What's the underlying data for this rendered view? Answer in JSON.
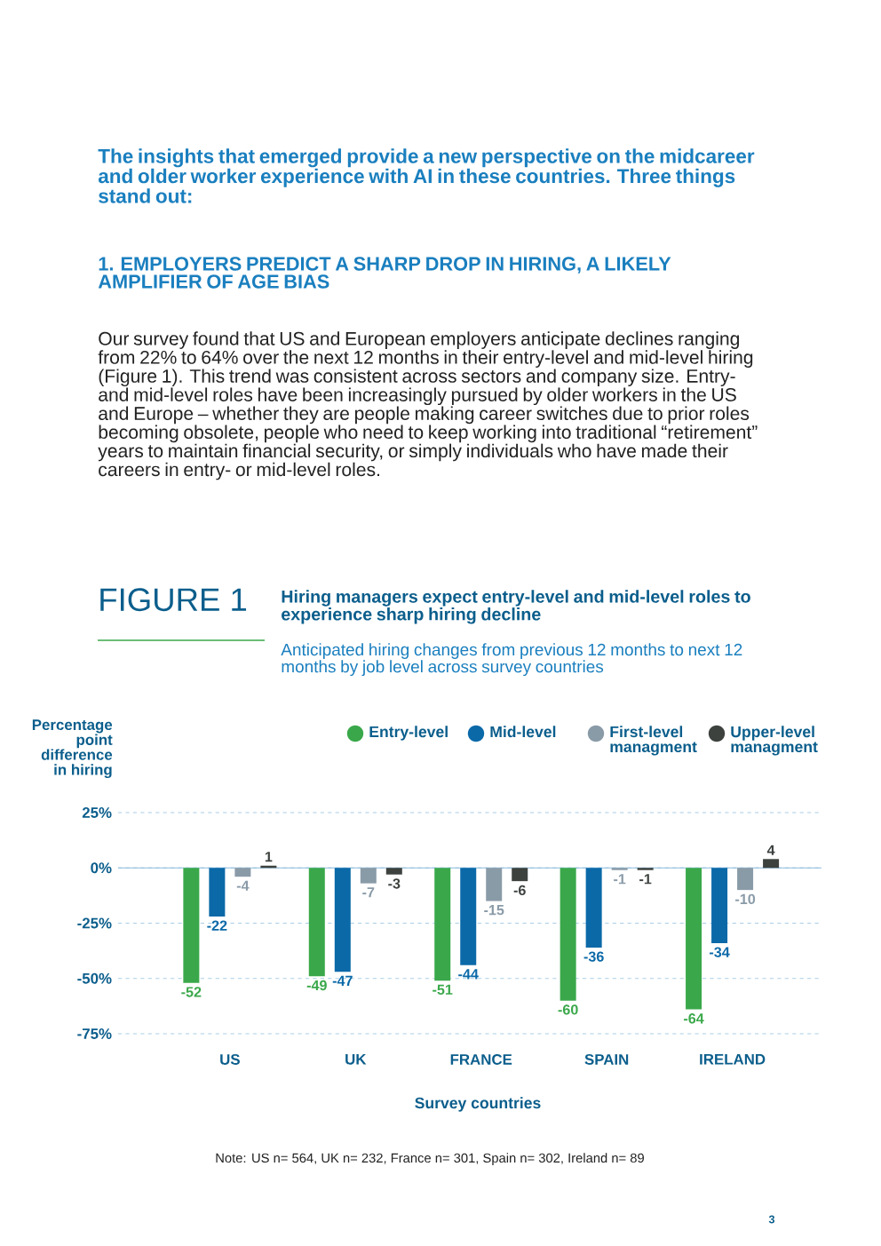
{
  "chart_data": {
    "type": "bar",
    "title": "Hiring managers expect entry-level and mid-level roles to experience sharp hiring decline",
    "subtitle": "Anticipated hiring changes from previous 12 months to next 12 months by job level across survey countries",
    "xlabel": "Survey countries",
    "ylabel": "Percentage point difference in hiring",
    "annotations": [
      "The insights that emerged provide a new perspective on the midcareer and older worker experience with AI in these countries. Three things stand out:",
      "1. EMPLOYERS PREDICT A SHARP DROP IN HIRING, A LIKELY AMPLIFIER OF AGE BIAS",
      "Our survey found that US and European employers anticipate declines ranging from 22% to 64% over the next 12 months in their entry-level and mid-level hiring (Figure 1). This trend was consistent across sectors and company size. Entry- and mid-level roles have been increasingly pursued by older workers in the US and Europe – whether they are people making career switches due to prior roles becoming obsolete, people who need to keep working into traditional “retirement” years to maintain financial security, or simply individuals who have made their careers in entry- or mid-level roles.",
      "FIGURE 1",
      "Note: US n= 564, UK n= 232, France n= 301, Spain n= 302, Ireland n= 89",
      "3"
    ],
    "categories": [
      "US",
      "UK",
      "FRANCE",
      "SPAIN",
      "IRELAND"
    ],
    "series": [
      {
        "name": "Entry-level",
        "color": "#3aa84a",
        "values": [
          -52,
          -49,
          -51,
          -60,
          -64
        ]
      },
      {
        "name": "Mid-level",
        "color": "#0b69a8",
        "values": [
          -22,
          -47,
          -44,
          -36,
          -34
        ]
      },
      {
        "name": "First-level managment",
        "color": "#8a9ba8",
        "values": [
          -4,
          -7,
          -15,
          -1,
          -10
        ]
      },
      {
        "name": "Upper-level managment",
        "color": "#3d423e",
        "values": [
          1,
          -3,
          -6,
          -1,
          4
        ]
      }
    ],
    "ylim": [
      -75,
      25
    ],
    "yticks": [
      {
        "value": -75,
        "label": "-75%"
      },
      {
        "value": -50,
        "label": "-50%"
      },
      {
        "value": -25,
        "label": "-25%"
      },
      {
        "value": 0,
        "label": "0%"
      },
      {
        "value": 25,
        "label": "25%"
      }
    ],
    "ref_lines": [
      {
        "axis": "y",
        "value": 0,
        "color": "#8cbcdc"
      }
    ],
    "grid": "y",
    "legend": "top",
    "data_labels": true
  }
}
